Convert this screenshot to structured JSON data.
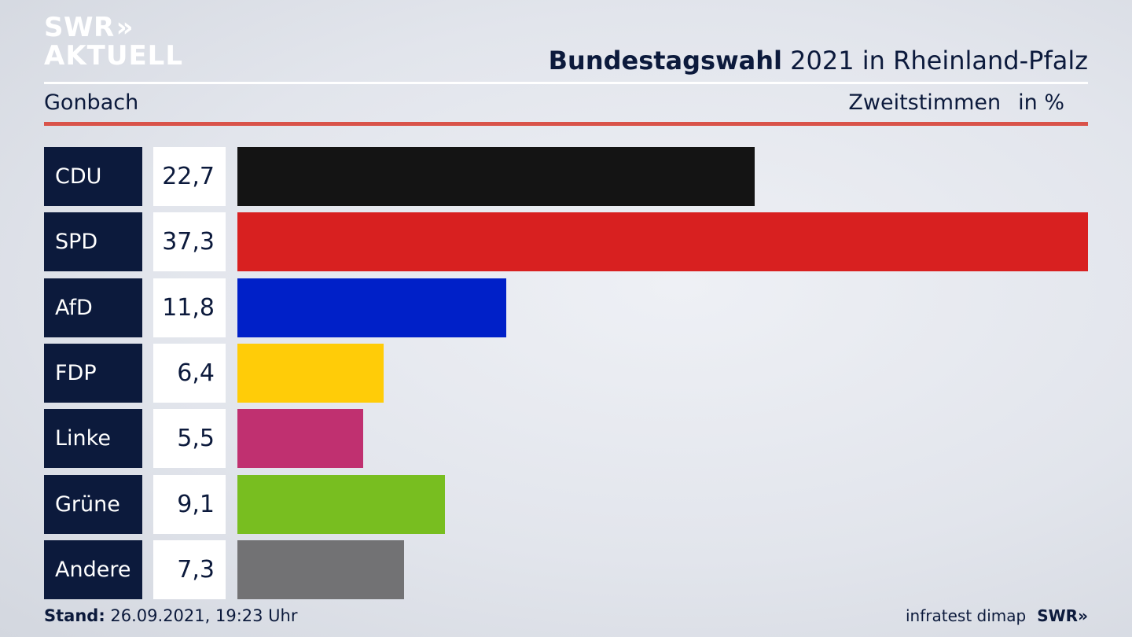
{
  "logo": {
    "line1": "SWR",
    "chevrons": "»",
    "line2": "AKTUELL"
  },
  "header": {
    "title_bold": "Bundestagswahl",
    "title_rest": " 2021 in Rheinland-Pfalz",
    "subtitle": "Gonbach",
    "measure": "Zweitstimmen",
    "unit": "in %"
  },
  "chart_data": {
    "type": "bar",
    "orientation": "horizontal",
    "title": "Bundestagswahl 2021 in Rheinland-Pfalz",
    "subtitle": "Gonbach",
    "xlabel": "",
    "ylabel": "",
    "categories": [
      "CDU",
      "SPD",
      "AfD",
      "FDP",
      "Linke",
      "Grüne",
      "Andere"
    ],
    "values": [
      22.7,
      37.3,
      11.8,
      6.4,
      5.5,
      9.1,
      7.3
    ],
    "value_labels": [
      "22,7",
      "37,3",
      "11,8",
      "6,4",
      "5,5",
      "9,1",
      "7,3"
    ],
    "colors": [
      "#141414",
      "#d82020",
      "#0020c8",
      "#ffcc08",
      "#c03070",
      "#78be20",
      "#727274"
    ],
    "xlim": [
      0,
      37.3
    ],
    "grid": false
  },
  "footer": {
    "stand_label": "Stand:",
    "stand_value": " 26.09.2021, 19:23 Uhr",
    "source": "infratest dimap",
    "brand": "SWR»"
  }
}
